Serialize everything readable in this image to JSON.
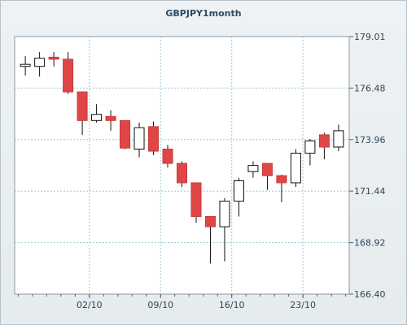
{
  "chart_data": {
    "type": "candlestick",
    "title": "GBPJPY1month",
    "ylim": [
      166.4,
      179.01
    ],
    "y_ticks": [
      "179.01",
      "176.48",
      "173.96",
      "171.44",
      "168.92",
      "166.40"
    ],
    "x_ticks": [
      {
        "label": "02/10",
        "candle": 5
      },
      {
        "label": "09/10",
        "candle": 10
      },
      {
        "label": "16/10",
        "candle": 15
      },
      {
        "label": "23/10",
        "candle": 20
      }
    ],
    "grid": true,
    "up_color": "#ffffff",
    "down_color": "#e04646",
    "candles": [
      {
        "o": 177.55,
        "h": 178.05,
        "l": 177.1,
        "c": 177.65
      },
      {
        "o": 177.55,
        "h": 178.25,
        "l": 177.05,
        "c": 177.95
      },
      {
        "o": 178.0,
        "h": 178.25,
        "l": 177.55,
        "c": 177.9
      },
      {
        "o": 177.9,
        "h": 178.25,
        "l": 176.2,
        "c": 176.3
      },
      {
        "o": 176.3,
        "h": 176.3,
        "l": 174.2,
        "c": 174.9
      },
      {
        "o": 174.9,
        "h": 175.7,
        "l": 174.8,
        "c": 175.2
      },
      {
        "o": 175.1,
        "h": 175.4,
        "l": 174.4,
        "c": 174.9
      },
      {
        "o": 174.9,
        "h": 174.9,
        "l": 173.5,
        "c": 173.55
      },
      {
        "o": 173.5,
        "h": 174.8,
        "l": 173.1,
        "c": 174.55
      },
      {
        "o": 174.6,
        "h": 174.85,
        "l": 173.2,
        "c": 173.4
      },
      {
        "o": 173.5,
        "h": 173.7,
        "l": 172.6,
        "c": 172.8
      },
      {
        "o": 172.8,
        "h": 172.9,
        "l": 171.65,
        "c": 171.85
      },
      {
        "o": 171.85,
        "h": 171.85,
        "l": 169.9,
        "c": 170.2
      },
      {
        "o": 170.2,
        "h": 170.2,
        "l": 167.9,
        "c": 169.7
      },
      {
        "o": 169.7,
        "h": 171.1,
        "l": 168.0,
        "c": 170.95
      },
      {
        "o": 170.95,
        "h": 172.1,
        "l": 170.2,
        "c": 171.95
      },
      {
        "o": 172.4,
        "h": 172.9,
        "l": 172.1,
        "c": 172.7
      },
      {
        "o": 172.8,
        "h": 172.8,
        "l": 171.5,
        "c": 172.2
      },
      {
        "o": 172.2,
        "h": 172.25,
        "l": 170.9,
        "c": 171.85
      },
      {
        "o": 171.85,
        "h": 173.5,
        "l": 171.65,
        "c": 173.3
      },
      {
        "o": 173.3,
        "h": 174.0,
        "l": 172.7,
        "c": 173.9
      },
      {
        "o": 174.2,
        "h": 174.3,
        "l": 173.0,
        "c": 173.6
      },
      {
        "o": 173.6,
        "h": 174.7,
        "l": 173.4,
        "c": 174.4
      }
    ]
  }
}
